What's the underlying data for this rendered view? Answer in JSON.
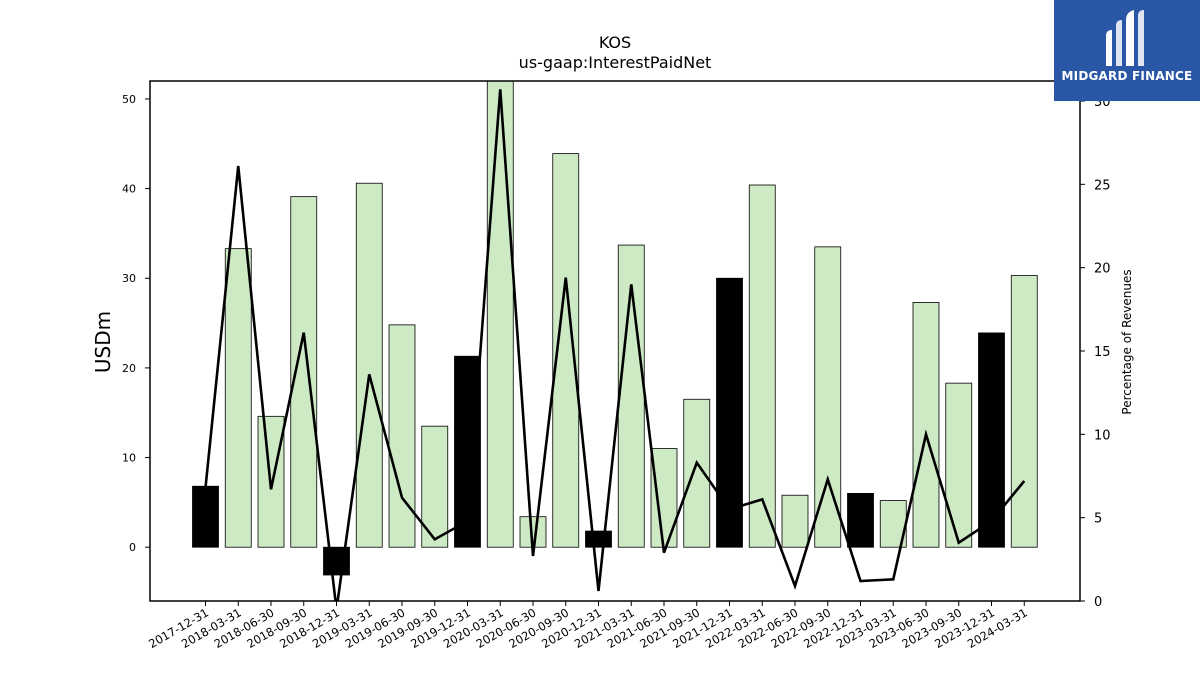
{
  "chart_data": {
    "type": "bar",
    "title": "KOS",
    "subtitle": "us-gaap:InterestPaidNet",
    "ylabel": "USDm",
    "y2label": "Percentage of Revenues",
    "ylim": [
      -6,
      52
    ],
    "y2lim": [
      0,
      31.2
    ],
    "yticks": [
      0,
      10,
      20,
      30,
      40,
      50
    ],
    "y2ticks": [
      0,
      5,
      10,
      15,
      20,
      25,
      30
    ],
    "categories": [
      "2017-12-31",
      "2018-03-31",
      "2018-06-30",
      "2018-09-30",
      "2018-12-31",
      "2019-03-31",
      "2019-06-30",
      "2019-09-30",
      "2019-12-31",
      "2020-03-31",
      "2020-06-30",
      "2020-09-30",
      "2020-12-31",
      "2021-03-31",
      "2021-06-30",
      "2021-09-30",
      "2021-12-31",
      "2022-03-31",
      "2022-06-30",
      "2022-09-30",
      "2022-12-31",
      "2023-03-31",
      "2023-06-30",
      "2023-09-30",
      "2023-12-31",
      "2024-03-31"
    ],
    "series": [
      {
        "type": "bar",
        "values": [
          6.8,
          33.3,
          14.6,
          39.1,
          -3.1,
          40.6,
          24.8,
          13.5,
          21.3,
          52.5,
          3.4,
          43.9,
          1.8,
          33.7,
          11.0,
          16.5,
          30.0,
          40.4,
          5.8,
          33.5,
          6.0,
          5.2,
          27.3,
          18.3,
          23.9,
          30.3
        ],
        "highlight": [
          true,
          false,
          false,
          false,
          true,
          false,
          false,
          false,
          true,
          false,
          false,
          false,
          true,
          false,
          false,
          false,
          true,
          false,
          false,
          false,
          true,
          false,
          false,
          false,
          true,
          false
        ]
      },
      {
        "type": "line",
        "axis": "right",
        "values": [
          6.8,
          26.1,
          6.7,
          16.1,
          -0.5,
          13.6,
          6.2,
          3.7,
          4.8,
          30.7,
          2.7,
          19.4,
          0.6,
          19.0,
          2.9,
          8.3,
          5.5,
          6.1,
          0.9,
          7.3,
          1.2,
          1.3,
          10.0,
          3.5,
          4.8,
          7.2
        ]
      }
    ],
    "colors": {
      "highlight_bar": "#000000",
      "bar": "#cdeac5",
      "bar_edge": "#000000",
      "line": "#000000"
    },
    "grid": false
  },
  "logo": {
    "text": "MIDGARD FINANCE",
    "color": "#2a56a6"
  }
}
